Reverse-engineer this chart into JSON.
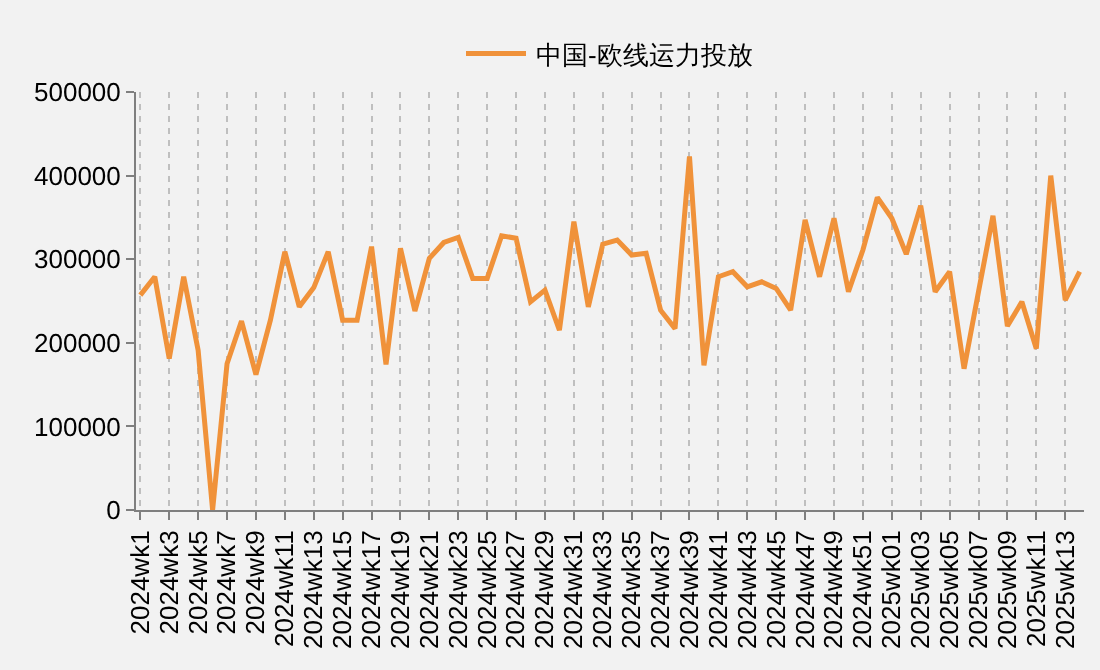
{
  "chart_data": {
    "type": "line",
    "categories": [
      "2024wk1",
      null,
      "2024wk3",
      null,
      "2024wk5",
      null,
      "2024wk7",
      null,
      "2024wk9",
      null,
      "2024wk11",
      null,
      "2024wk13",
      null,
      "2024wk15",
      null,
      "2024wk17",
      null,
      "2024wk19",
      null,
      "2024wk21",
      null,
      "2024wk23",
      null,
      "2024wk25",
      null,
      "2024wk27",
      null,
      "2024wk29",
      null,
      "2024wk31",
      null,
      "2024wk33",
      null,
      "2024wk35",
      null,
      "2024wk37",
      null,
      "2024wk39",
      null,
      "2024wk41",
      null,
      "2024wk43",
      null,
      "2024wk45",
      null,
      "2024wk47",
      null,
      "2024wk49",
      null,
      "2024wk51",
      null,
      "2025wk01",
      null,
      "2025wk03",
      null,
      "2025wk05",
      null,
      "2025wk07",
      null,
      "2025wk09",
      null,
      "2025wk11",
      null,
      "2025wk13",
      null
    ],
    "series": [
      {
        "name": "中国-欧线运力投放",
        "color": "#f0923a",
        "values": [
          257000,
          279000,
          181000,
          279000,
          191000,
          0,
          175000,
          226000,
          162000,
          227000,
          309000,
          243000,
          266000,
          309000,
          227000,
          227000,
          315000,
          174000,
          313000,
          238000,
          301000,
          320000,
          326000,
          277000,
          277000,
          328000,
          325000,
          249000,
          263000,
          215000,
          345000,
          243000,
          318000,
          323000,
          305000,
          307000,
          239000,
          217000,
          423000,
          173000,
          279000,
          285000,
          267000,
          273000,
          265000,
          239000,
          347000,
          279000,
          349000,
          261000,
          311000,
          374000,
          349000,
          306000,
          364000,
          261000,
          285000,
          169000,
          261000,
          352000,
          220000,
          249000,
          193000,
          400000,
          251000,
          285000
        ]
      }
    ],
    "ylim": [
      0,
      500000
    ],
    "yticks": [
      0,
      100000,
      200000,
      300000,
      400000,
      500000
    ],
    "grid": "x",
    "legend": "top",
    "marker": "none",
    "line_style": "solid"
  }
}
